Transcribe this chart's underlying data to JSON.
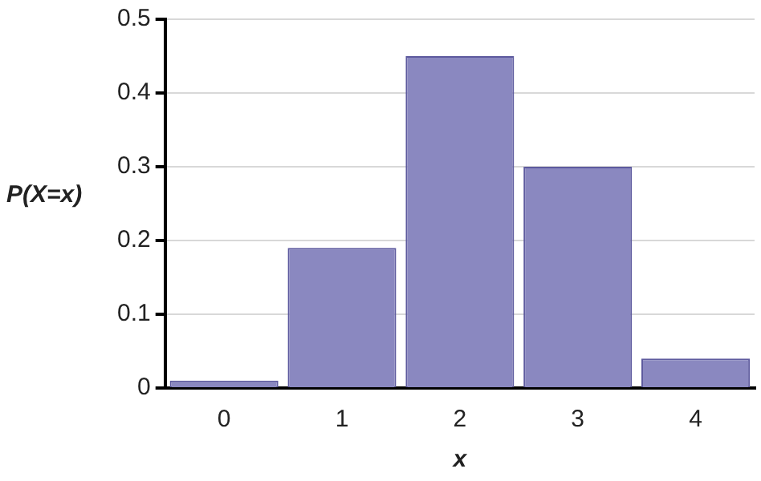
{
  "chart_data": {
    "type": "bar",
    "xlabel": "x",
    "ylabel": "P(X=x)",
    "categories": [
      "0",
      "1",
      "2",
      "3",
      "4"
    ],
    "values": [
      0.01,
      0.19,
      0.45,
      0.3,
      0.04
    ],
    "color": "#8a88c0",
    "ylim": [
      0,
      0.5
    ],
    "yticks": [
      0,
      0.1,
      0.2,
      0.3,
      0.4,
      0.5
    ],
    "grid": "y"
  }
}
